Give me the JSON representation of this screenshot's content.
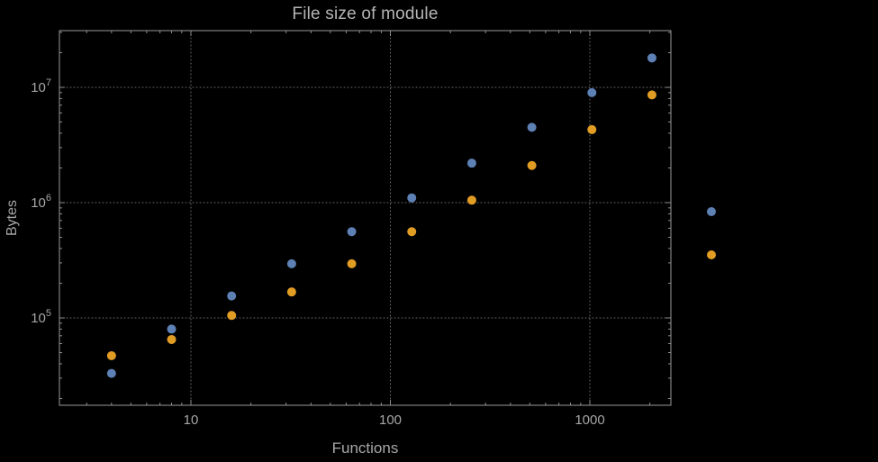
{
  "chart_data": {
    "type": "scatter",
    "title": "File size of module",
    "xlabel": "Functions",
    "ylabel": "Bytes",
    "x_scale": "log",
    "y_scale": "log",
    "grid": "dotted-major",
    "xlim": [
      2.3,
      2550
    ],
    "ylim": [
      17500,
      30500000
    ],
    "x": [
      4,
      8,
      16,
      32,
      64,
      128,
      256,
      512,
      1024,
      2048
    ],
    "series": [
      {
        "name": "series-blue",
        "color": "#5E81B5",
        "values": [
          33000,
          80000,
          155000,
          295000,
          560000,
          1100000,
          2200000,
          4500000,
          9000000,
          18000000
        ]
      },
      {
        "name": "series-orange",
        "color": "#E19C24",
        "values": [
          47000,
          65000,
          105000,
          168000,
          295000,
          560000,
          1050000,
          2100000,
          4300000,
          8600000
        ]
      }
    ],
    "x_ticks": {
      "major": [
        10,
        100,
        1000
      ],
      "labels": [
        "10",
        "100",
        "1000"
      ]
    },
    "y_ticks": {
      "major": [
        100000,
        1000000,
        10000000
      ],
      "labels": [
        {
          "mantissa": "10",
          "exp": "5"
        },
        {
          "mantissa": "10",
          "exp": "6"
        },
        {
          "mantissa": "10",
          "exp": "7"
        }
      ]
    },
    "legend": {
      "position": "right-of-frame",
      "labels_visible": false,
      "marker_colors": [
        "#5E81B5",
        "#E19C24"
      ]
    },
    "colors": {
      "background": "#000000",
      "frame": "#9a9a9a",
      "grid": "#6a6a6a",
      "tick_text": "#a6a6a6",
      "title_text": "#b5b5b5"
    }
  }
}
